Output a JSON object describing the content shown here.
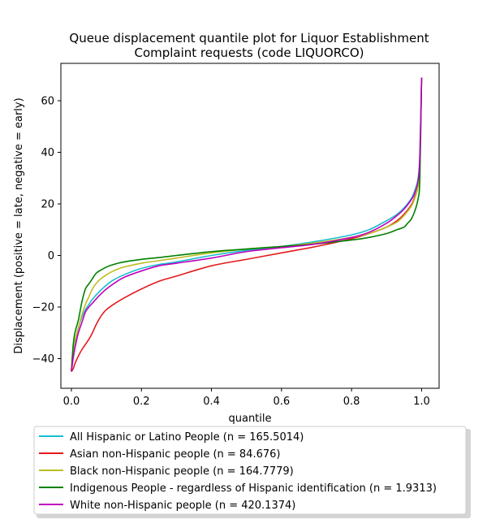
{
  "chart_data": {
    "type": "line",
    "title_lines": [
      "Queue displacement quantile plot for Liquor Establishment",
      "Complaint  requests (code LIQUORCO)"
    ],
    "xlabel": "quantile",
    "ylabel": "Displacement (positive = late, negative = early)",
    "xlim": [
      -0.03,
      1.05
    ],
    "ylim": [
      -51.5,
      74.5
    ],
    "xticks": [
      0.0,
      0.2,
      0.4,
      0.6,
      0.8,
      1.0
    ],
    "xtick_labels": [
      "0.0",
      "0.2",
      "0.4",
      "0.6",
      "0.8",
      "1.0"
    ],
    "yticks": [
      -40,
      -20,
      0,
      20,
      40,
      60
    ],
    "ytick_labels": [
      "−40",
      "−20",
      "0",
      "20",
      "40",
      "60"
    ],
    "grid": false,
    "legend_position": "bottom",
    "series": [
      {
        "name": "All Hispanic or Latino People (n = 165.5014)",
        "color": "#17becf",
        "x": [
          0.0,
          0.005,
          0.01,
          0.02,
          0.03,
          0.04,
          0.05,
          0.06,
          0.08,
          0.1,
          0.12,
          0.15,
          0.2,
          0.25,
          0.3,
          0.4,
          0.5,
          0.6,
          0.7,
          0.8,
          0.85,
          0.9,
          0.93,
          0.95,
          0.97,
          0.98,
          0.99,
          0.995,
          1.0
        ],
        "y": [
          -45,
          -38,
          -34,
          -28,
          -24,
          -21,
          -19,
          -17,
          -14,
          -11.5,
          -9.5,
          -7.5,
          -5,
          -3.5,
          -2.5,
          0,
          2,
          3.5,
          5.5,
          8,
          10,
          13.5,
          16,
          18.5,
          22,
          25,
          30,
          40,
          69
        ]
      },
      {
        "name": "Asian non-Hispanic people (n = 84.676)",
        "color": "#e41a1c",
        "x": [
          0.0,
          0.005,
          0.01,
          0.02,
          0.03,
          0.04,
          0.05,
          0.06,
          0.07,
          0.08,
          0.09,
          0.1,
          0.12,
          0.15,
          0.2,
          0.25,
          0.3,
          0.4,
          0.5,
          0.6,
          0.7,
          0.8,
          0.85,
          0.9,
          0.93,
          0.95,
          0.97,
          0.98,
          0.99,
          0.995,
          1.0
        ],
        "y": [
          -45,
          -44,
          -42,
          -39,
          -36.5,
          -34.5,
          -32.5,
          -30,
          -27,
          -24.5,
          -22.5,
          -21,
          -19,
          -16.5,
          -13,
          -10,
          -8,
          -4,
          -1.5,
          1,
          3.5,
          6.5,
          8.5,
          11,
          13.5,
          16,
          19.5,
          22.5,
          27,
          35,
          69
        ]
      },
      {
        "name": "Black non-Hispanic people (n = 164.7779)",
        "color": "#bcbd22",
        "x": [
          0.0,
          0.005,
          0.01,
          0.02,
          0.03,
          0.04,
          0.05,
          0.06,
          0.07,
          0.08,
          0.1,
          0.12,
          0.15,
          0.2,
          0.25,
          0.3,
          0.4,
          0.5,
          0.6,
          0.7,
          0.8,
          0.85,
          0.9,
          0.93,
          0.95,
          0.97,
          0.98,
          0.99,
          0.995,
          1.0
        ],
        "y": [
          -45,
          -37,
          -33,
          -28,
          -23,
          -19,
          -16,
          -13,
          -11,
          -9.5,
          -7.5,
          -6,
          -4.5,
          -3,
          -2,
          -1,
          1,
          2.5,
          3.5,
          5,
          7,
          8.5,
          11,
          13,
          15.5,
          19,
          22,
          27,
          36,
          69
        ]
      },
      {
        "name": "Indigenous People - regardless of Hispanic identification (n = 1.9313)",
        "color": "#008000",
        "x": [
          0.0,
          0.005,
          0.01,
          0.02,
          0.03,
          0.04,
          0.05,
          0.06,
          0.07,
          0.08,
          0.1,
          0.12,
          0.15,
          0.2,
          0.25,
          0.3,
          0.4,
          0.5,
          0.6,
          0.7,
          0.8,
          0.85,
          0.9,
          0.93,
          0.95,
          0.96,
          0.97,
          0.98,
          0.99,
          0.995,
          1.0
        ],
        "y": [
          -45,
          -35,
          -30,
          -25,
          -18,
          -13,
          -11,
          -9,
          -7,
          -6,
          -4.5,
          -3.5,
          -2.5,
          -1.5,
          -0.8,
          0,
          1.5,
          2.5,
          3.5,
          4.5,
          6,
          7,
          8.5,
          10,
          11,
          12.5,
          14,
          17,
          22,
          30,
          69
        ]
      },
      {
        "name": "White non-Hispanic people (n = 420.1374)",
        "color": "#c000c0",
        "x": [
          0.0,
          0.005,
          0.01,
          0.02,
          0.03,
          0.04,
          0.05,
          0.06,
          0.08,
          0.1,
          0.12,
          0.15,
          0.2,
          0.25,
          0.3,
          0.4,
          0.5,
          0.6,
          0.7,
          0.8,
          0.85,
          0.9,
          0.93,
          0.95,
          0.97,
          0.98,
          0.99,
          0.995,
          1.0
        ],
        "y": [
          -45,
          -40,
          -36,
          -30,
          -26,
          -22,
          -20,
          -18.5,
          -15.5,
          -13,
          -11,
          -8.5,
          -6,
          -4,
          -3,
          -1,
          1.5,
          3,
          4.5,
          7,
          9,
          12.5,
          15.5,
          18,
          21.5,
          24,
          29,
          38,
          69
        ]
      }
    ]
  }
}
